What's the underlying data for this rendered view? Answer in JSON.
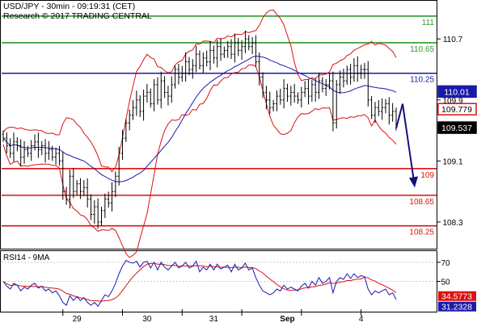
{
  "header": {
    "line1": "USD/JPY - 30min - 09:19:31 (CET)",
    "line2": "Research © 2017 TRADING CENTRAL"
  },
  "colors": {
    "green_level": "#2e9a2e",
    "blue_level": "#1a1a9a",
    "red_level": "#dd1111",
    "bollinger": "#dd1111",
    "moving_average": "#1a1aaa",
    "candles": "#000000",
    "arrow": "#12127a",
    "rsi": "#1a1aaa",
    "rsi_ma": "#dd1111",
    "tag_blue": "#1a1aaa",
    "tag_red": "#dd1111",
    "tag_black": "#000000"
  },
  "chart_data": [
    {
      "type": "candlestick",
      "title": "USD/JPY - 30min",
      "ylim": [
        107.95,
        111.2
      ],
      "y_ticks": [
        "110.7",
        "109.9",
        "109.1",
        "108.3"
      ],
      "x_ticks": [
        "29",
        "30",
        "31",
        "Sep",
        "4"
      ],
      "levels": [
        {
          "value": 111.0,
          "label": "111",
          "color": "green"
        },
        {
          "value": 110.65,
          "label": "110.65",
          "color": "green"
        },
        {
          "value": 110.25,
          "label": "110.25",
          "color": "blue"
        },
        {
          "value": 109.0,
          "label": "109",
          "color": "red"
        },
        {
          "value": 108.65,
          "label": "108.65",
          "color": "red"
        },
        {
          "value": 108.25,
          "label": "108.25",
          "color": "red"
        }
      ],
      "price_tags": [
        {
          "value": "110.01",
          "style": "blue"
        },
        {
          "value": "109.779",
          "style": "red"
        },
        {
          "value": "109.537",
          "style": "black"
        }
      ],
      "close": [
        109.4,
        109.3,
        109.2,
        109.35,
        109.3,
        109.15,
        109.25,
        109.2,
        109.3,
        109.35,
        109.25,
        109.3,
        109.2,
        109.25,
        109.15,
        109.2,
        109.1,
        108.7,
        108.6,
        108.9,
        108.7,
        108.8,
        108.7,
        108.75,
        108.6,
        108.4,
        108.5,
        108.3,
        108.45,
        108.6,
        108.55,
        108.7,
        108.9,
        109.2,
        109.4,
        109.6,
        109.7,
        109.8,
        109.9,
        109.75,
        109.95,
        110.0,
        109.85,
        110.1,
        109.9,
        110.15,
        110.0,
        109.95,
        110.1,
        110.3,
        110.2,
        110.25,
        110.4,
        110.3,
        110.35,
        110.5,
        110.35,
        110.45,
        110.4,
        110.55,
        110.45,
        110.6,
        110.5,
        110.55,
        110.6,
        110.5,
        110.65,
        110.55,
        110.6,
        110.7,
        110.6,
        110.65,
        110.4,
        110.2,
        110.0,
        109.9,
        109.8,
        109.85,
        109.95,
        109.9,
        110.05,
        109.95,
        110.0,
        109.95,
        109.9,
        110.0,
        110.05,
        109.95,
        110.1,
        110.0,
        110.15,
        110.05,
        110.1,
        110.15,
        109.6,
        110.1,
        110.2,
        110.15,
        110.3,
        110.2,
        110.35,
        110.25,
        110.3,
        110.3,
        109.9,
        109.7,
        109.8,
        109.75,
        109.8,
        109.85,
        109.7,
        109.75,
        109.55
      ],
      "projection": [
        109.85,
        108.75
      ]
    },
    {
      "type": "line",
      "title": "RSI14 - 9MA",
      "ylim": [
        20,
        80
      ],
      "y_ticks": [
        "70",
        "50"
      ],
      "series": [
        {
          "name": "RSI14",
          "value": "31.2328"
        },
        {
          "name": "9MA",
          "value": "34.5773"
        }
      ],
      "rsi_values": [
        50,
        45,
        42,
        48,
        46,
        40,
        44,
        42,
        46,
        48,
        43,
        45,
        40,
        42,
        38,
        40,
        35,
        28,
        25,
        35,
        30,
        34,
        30,
        33,
        28,
        25,
        28,
        24,
        30,
        36,
        34,
        40,
        48,
        58,
        66,
        72,
        70,
        69,
        71,
        65,
        70,
        71,
        64,
        70,
        62,
        70,
        65,
        62,
        66,
        70,
        64,
        66,
        70,
        64,
        66,
        71,
        60,
        65,
        62,
        68,
        62,
        68,
        63,
        65,
        67,
        60,
        68,
        62,
        64,
        69,
        62,
        64,
        54,
        46,
        40,
        38,
        36,
        38,
        42,
        40,
        46,
        42,
        44,
        42,
        40,
        45,
        48,
        43,
        50,
        46,
        54,
        48,
        50,
        54,
        38,
        50,
        54,
        52,
        58,
        53,
        58,
        54,
        56,
        55,
        42,
        36,
        40,
        38,
        40,
        42,
        36,
        38,
        31
      ]
    }
  ]
}
